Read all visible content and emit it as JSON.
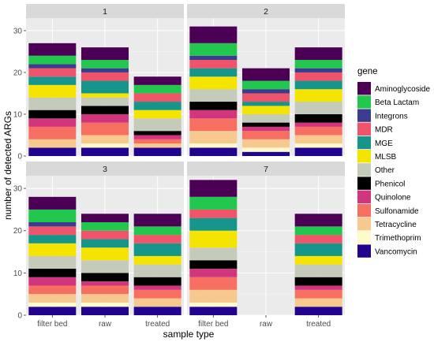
{
  "chart_data": {
    "type": "bar",
    "stacked": true,
    "x_title": "sample type",
    "y_title": "number of detected ARGs",
    "categories": [
      "filter bed",
      "raw",
      "treated"
    ],
    "ylim": [
      0,
      33
    ],
    "y_ticks": [
      0,
      10,
      20,
      30
    ],
    "grid": true,
    "legend_position": "right",
    "legend_title": "gene",
    "genes": [
      {
        "name": "Aminoglycoside",
        "color": "#4b0055"
      },
      {
        "name": "Beta Lactam",
        "color": "#22c84e"
      },
      {
        "name": "Integrons",
        "color": "#3b3b8f"
      },
      {
        "name": "MDR",
        "color": "#f0546a"
      },
      {
        "name": "MGE",
        "color": "#16968a"
      },
      {
        "name": "MLSB",
        "color": "#f4e400"
      },
      {
        "name": "Other",
        "color": "#c5cbba"
      },
      {
        "name": "Phenicol",
        "color": "#000000"
      },
      {
        "name": "Quinolone",
        "color": "#d0357d"
      },
      {
        "name": "Sulfonamide",
        "color": "#f76f60"
      },
      {
        "name": "Tetracycline",
        "color": "#f8c98f"
      },
      {
        "name": "Trimethoprim",
        "color": "#fffacc"
      },
      {
        "name": "Vancomycin",
        "color": "#21038f"
      }
    ],
    "facets": [
      {
        "label": "1",
        "values": {
          "filter bed": [
            3,
            2,
            1,
            2,
            2,
            3,
            3,
            2,
            2,
            3,
            2,
            0,
            2
          ],
          "raw": [
            3,
            2,
            1,
            2,
            3,
            1,
            2,
            2,
            2,
            3,
            2,
            1,
            2
          ],
          "treated": [
            2,
            2,
            0,
            2,
            2,
            2,
            3,
            1,
            1,
            1,
            1,
            0,
            2
          ]
        }
      },
      {
        "label": "2",
        "values": {
          "filter bed": [
            4,
            3,
            1,
            2,
            2,
            3,
            3,
            2,
            2,
            3,
            3,
            1,
            2
          ],
          "raw": [
            3,
            2,
            1,
            2,
            1,
            2,
            2,
            1,
            1,
            2,
            2,
            1,
            1
          ],
          "treated": [
            3,
            2,
            1,
            2,
            2,
            3,
            3,
            2,
            1,
            2,
            2,
            1,
            2
          ]
        }
      },
      {
        "label": "3",
        "values": {
          "filter bed": [
            3,
            3,
            1,
            2,
            2,
            3,
            3,
            2,
            2,
            2,
            2,
            1,
            2
          ],
          "raw": [
            2,
            2,
            0,
            2,
            2,
            3,
            3,
            2,
            1,
            2,
            2,
            1,
            2
          ],
          "treated": [
            3,
            2,
            0,
            2,
            3,
            2,
            3,
            2,
            1,
            2,
            2,
            0,
            2
          ]
        }
      },
      {
        "label": "7",
        "values": {
          "filter bed": [
            4,
            3,
            0,
            2,
            3,
            4,
            3,
            2,
            2,
            3,
            3,
            1,
            2
          ],
          "raw": [
            0,
            0,
            0,
            0,
            0,
            0,
            0,
            0,
            0,
            0,
            0,
            0,
            0
          ],
          "treated": [
            3,
            2,
            0,
            2,
            3,
            2,
            3,
            2,
            1,
            2,
            2,
            0,
            2
          ]
        }
      }
    ]
  }
}
